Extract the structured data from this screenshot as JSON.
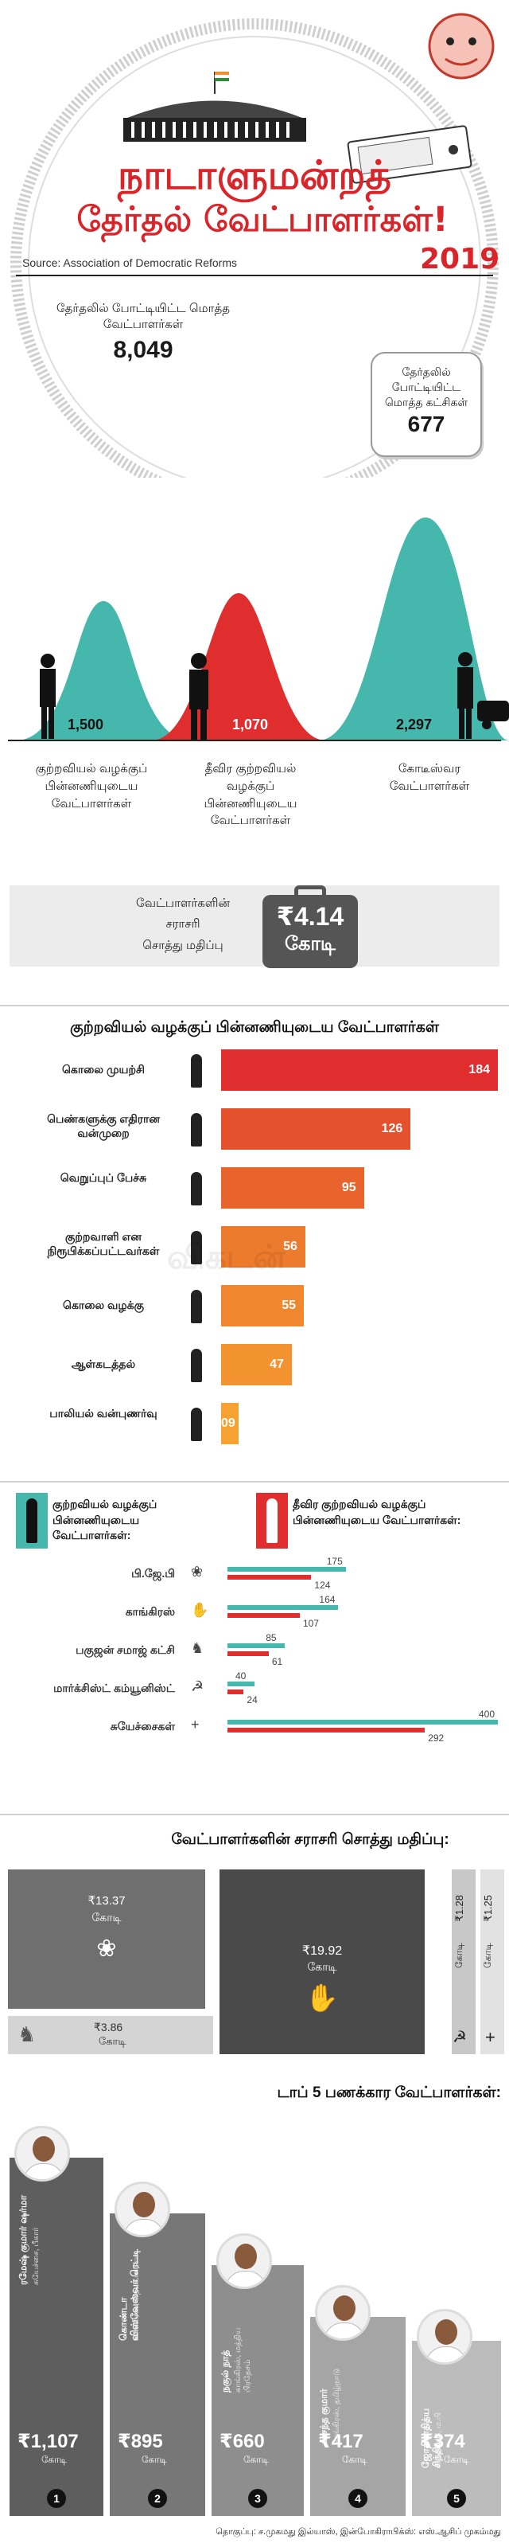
{
  "header": {
    "title_line1": "நாடாளுமன்றத்",
    "title_line2": "தேர்தல் வேட்பாளர்கள்!",
    "year": "2019",
    "source": "Source: Association of Democratic Reforms"
  },
  "stats": {
    "candidates_label": "தேர்தலில் போட்டியிட்ட மொத்த வேட்பாளர்கள்",
    "candidates_value": "8,049",
    "parties_label": "தேர்தலில் போட்டியிட்ட மொத்த கட்சிகள்",
    "parties_value": "677"
  },
  "bells": [
    {
      "value": "1,500",
      "label": "குற்றவியல் வழக்குப் பின்னணியுடைய வேட்பாளர்கள்",
      "color": "#46b7ac"
    },
    {
      "value": "1,070",
      "label": "தீவிர குற்றவியல் வழக்குப் பின்னணியுடைய வேட்பாளர்கள்",
      "color": "#e02d2e"
    },
    {
      "value": "2,297",
      "label": "கோடீஸ்வர வேட்பாளர்கள்",
      "color": "#46b7ac"
    }
  ],
  "avg_asset": {
    "label_line1": "வேட்பாளர்களின்",
    "label_line2": "சராசரி",
    "label_line3": "சொத்து மதிப்பு",
    "value": "₹4.14",
    "unit": "கோடி"
  },
  "crimes": {
    "title": "குற்றவியல் வழக்குப் பின்னணியுடைய வேட்பாளர்கள்",
    "items": [
      {
        "label": "கொலை முயற்சி",
        "value": 184,
        "color": "#e02d2e"
      },
      {
        "label": "பெண்களுக்கு எதிரான வன்முறை",
        "value": 126,
        "color": "#e4512c"
      },
      {
        "label": "வெறுப்புப் பேச்சு",
        "value": 95,
        "color": "#e9642c"
      },
      {
        "label": "குற்றவாளி என நிரூபிக்கப்பட்டவர்கள்",
        "value": 56,
        "color": "#ed7b2d"
      },
      {
        "label": "கொலை வழக்கு",
        "value": 55,
        "color": "#f0872e"
      },
      {
        "label": "ஆள்கடத்தல்",
        "value": 47,
        "color": "#f29330"
      },
      {
        "label": "பாலியல் வன்புணர்வு",
        "value": "09",
        "color": "#f5a233"
      }
    ]
  },
  "party_chart": {
    "legend_teal": "குற்றவியல் வழக்குப் பின்னணியுடைய வேட்பாளர்கள்:",
    "legend_red": "தீவிர குற்றவியல் வழக்குப் பின்னணியுடைய வேட்பாளர்கள்:",
    "parties": [
      {
        "name": "பி.ஜே.பி",
        "criminal": 175,
        "serious": 124,
        "symbol": "❀"
      },
      {
        "name": "காங்கிரஸ்",
        "criminal": 164,
        "serious": 107,
        "symbol": "✋"
      },
      {
        "name": "பகுஜன் சமாஜ் கட்சி",
        "criminal": 85,
        "serious": 61,
        "symbol": "♞"
      },
      {
        "name": "மார்க்சிஸ்ட் கம்யூனிஸ்ட்",
        "criminal": 40,
        "serious": 24,
        "symbol": "☭"
      },
      {
        "name": "சுயேச்சைகள்",
        "criminal": 400,
        "serious": 292,
        "symbol": "+"
      }
    ]
  },
  "party_assets": {
    "title": "வேட்பாளர்களின் சராசரி சொத்து மதிப்பு:",
    "bjp": {
      "value": "₹13.37",
      "unit": "கோடி"
    },
    "bsp": {
      "value": "₹3.86",
      "unit": "கோடி"
    },
    "inc": {
      "value": "₹19.92",
      "unit": "கோடி"
    },
    "cpm": {
      "value": "₹1.28",
      "unit": "கோடி"
    },
    "ind": {
      "value": "₹1.25",
      "unit": "கோடி"
    }
  },
  "richest": {
    "title": "டாப் 5 பணக்கார வேட்பாளர்கள்:",
    "items": [
      {
        "rank": "1",
        "name": "ரமேஷ் குமார் ஷர்மா",
        "sub": "சுயேச்சை, பீகார்",
        "value": "₹1,107",
        "unit": "கோடி"
      },
      {
        "rank": "2",
        "name": "கொண்டா விஸ்வேஸ்வர் ரெட்டி",
        "sub": "காங்கிரஸ், தெலங்கானா",
        "value": "₹895",
        "unit": "கோடி"
      },
      {
        "rank": "3",
        "name": "நகுல் நாத்",
        "sub": "காங்கிரஸ், மத்திய பிரதேசம்",
        "value": "₹660",
        "unit": "கோடி"
      },
      {
        "rank": "4",
        "name": "வசந்த குமார்",
        "sub": "காங்கிரஸ், தமிழ்நாடு",
        "value": "₹417",
        "unit": "கோடி"
      },
      {
        "rank": "5",
        "name": "ஜோதிராதித்ய சிந்தியா",
        "sub": "காங்கிரஸ், ம.பி",
        "value": "₹374",
        "unit": "கோடி"
      }
    ]
  },
  "footer": {
    "credit": "தொகுப்பு: ச.முகமது இல்யாஸ், இன்போகிராபிக்ஸ்: எஸ்.ஆசிப் முகம்மது"
  },
  "watermark": "விகடன்"
}
